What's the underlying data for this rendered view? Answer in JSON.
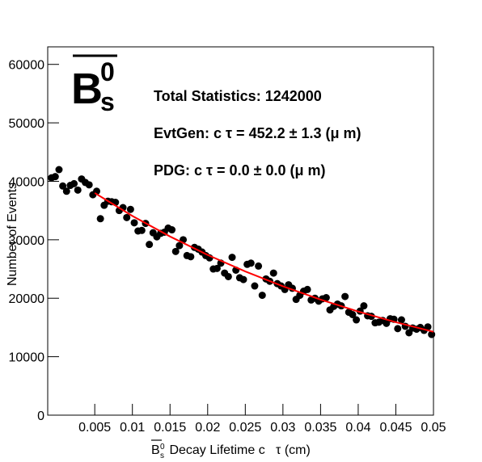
{
  "chart_data": {
    "type": "scatter",
    "title_parts": {
      "base": "B",
      "sub": "s",
      "sup": "0"
    },
    "annotations": [
      "Total Statistics: 1242000",
      "EvtGen: c  τ = 452.2 ± 1.3 (μ m)",
      "PDG: c  τ = 0.0 ± 0.0 (μ m)"
    ],
    "x_label_parts": {
      "base": "B",
      "sub": "s",
      "sup": "0",
      "text": " Decay Lifetime c   τ (cm)"
    },
    "y_label": "Number of Events",
    "xlim": [
      -0.00125,
      0.05
    ],
    "ylim": [
      0,
      63000
    ],
    "xticks": [
      0.005,
      0.01,
      0.015,
      0.02,
      0.025,
      0.03,
      0.035,
      0.04,
      0.045,
      0.05
    ],
    "yticks": [
      0,
      10000,
      20000,
      30000,
      40000,
      50000,
      60000
    ],
    "series": [
      {
        "color": "#000000",
        "x": [
          -0.00075,
          -0.00025,
          0.00025,
          0.00075,
          0.00125,
          0.00175,
          0.00225,
          0.00275,
          0.00325,
          0.00375,
          0.00425,
          0.00475,
          0.00525,
          0.00575,
          0.00625,
          0.00675,
          0.00725,
          0.00775,
          0.00825,
          0.00875,
          0.00925,
          0.00975,
          0.01025,
          0.01075,
          0.01125,
          0.01175,
          0.01225,
          0.01275,
          0.01325,
          0.01375,
          0.01425,
          0.01475,
          0.01525,
          0.01575,
          0.01625,
          0.01675,
          0.01725,
          0.01775,
          0.01825,
          0.01875,
          0.01925,
          0.01975,
          0.02025,
          0.02075,
          0.02125,
          0.02175,
          0.02225,
          0.02275,
          0.02325,
          0.02375,
          0.02425,
          0.02475,
          0.02525,
          0.02575,
          0.02625,
          0.02675,
          0.02725,
          0.02775,
          0.02825,
          0.02875,
          0.02925,
          0.02975,
          0.03025,
          0.03075,
          0.03125,
          0.03175,
          0.03225,
          0.03275,
          0.03325,
          0.03375,
          0.03425,
          0.03475,
          0.03525,
          0.03575,
          0.03625,
          0.03675,
          0.03725,
          0.03775,
          0.03825,
          0.03875,
          0.03925,
          0.03975,
          0.04025,
          0.04075,
          0.04125,
          0.04175,
          0.04225,
          0.04275,
          0.04325,
          0.04375,
          0.04425,
          0.04475,
          0.04525,
          0.04575,
          0.04625,
          0.04675,
          0.04725,
          0.04775,
          0.04825,
          0.04875,
          0.04925,
          0.04975
        ],
        "values": [
          40600,
          40800,
          42000,
          39200,
          38300,
          39300,
          39600,
          38500,
          40400,
          39800,
          39400,
          37700,
          38300,
          33600,
          35900,
          36600,
          36500,
          36400,
          35000,
          35500,
          33800,
          35200,
          32900,
          31500,
          31600,
          32800,
          29200,
          31200,
          30500,
          31100,
          31300,
          32000,
          31700,
          28000,
          29000,
          30000,
          27300,
          27100,
          28700,
          28400,
          27900,
          27300,
          26900,
          25000,
          25100,
          26000,
          24300,
          23700,
          27000,
          24800,
          23500,
          23200,
          25800,
          26000,
          22100,
          25500,
          20500,
          23300,
          22900,
          24300,
          22500,
          22100,
          21500,
          22300,
          21700,
          19800,
          20500,
          21200,
          21500,
          19700,
          20000,
          19500,
          19900,
          20100,
          18000,
          18600,
          19000,
          18700,
          20300,
          17600,
          17200,
          16300,
          17800,
          18700,
          17000,
          16900,
          15800,
          15900,
          16200,
          15700,
          16500,
          16400,
          14800,
          16300,
          15200,
          14100,
          14900,
          14700,
          15000,
          14500,
          15100,
          13800
        ]
      },
      {
        "type": "line",
        "color": "#ff0000",
        "x": [
          0.005,
          0.01,
          0.015,
          0.02,
          0.025,
          0.03,
          0.035,
          0.04,
          0.045,
          0.05
        ],
        "values": [
          38000,
          34080,
          30560,
          27410,
          24580,
          22040,
          19770,
          17730,
          15900,
          14260
        ]
      }
    ]
  }
}
